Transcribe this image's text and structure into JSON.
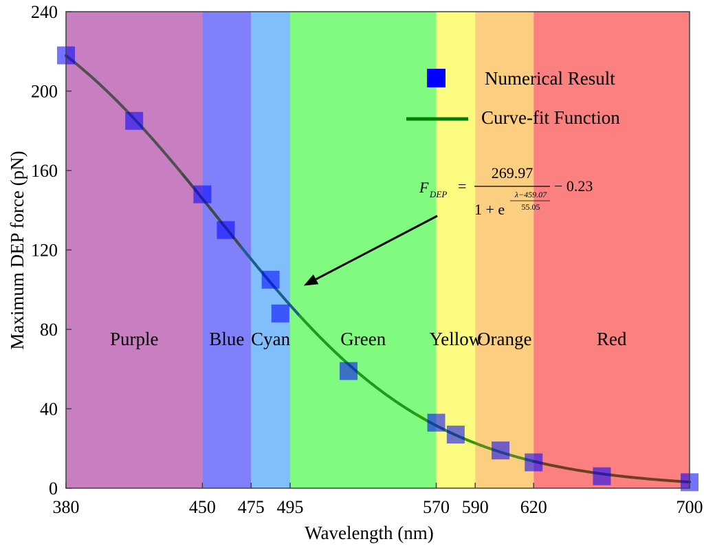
{
  "chart_data": {
    "type": "scatter",
    "xlabel": "Wavelength (nm)",
    "ylabel": "Maximum DEP force (pN)",
    "xlim": [
      380,
      700
    ],
    "ylim": [
      0,
      240
    ],
    "xticks": [
      380,
      450,
      475,
      495,
      570,
      590,
      620,
      700
    ],
    "yticks": [
      0,
      40,
      80,
      120,
      160,
      200,
      240
    ],
    "grid": false,
    "legend_position": "top-right",
    "bands": [
      {
        "label": "Purple",
        "from": 380,
        "to": 450,
        "color": "#c77fc1"
      },
      {
        "label": "Blue",
        "from": 450,
        "to": 475,
        "color": "#8080fb"
      },
      {
        "label": "Cyan",
        "from": 475,
        "to": 495,
        "color": "#80bffb"
      },
      {
        "label": "Green",
        "from": 495,
        "to": 570,
        "color": "#80fb80"
      },
      {
        "label": "Yellow",
        "from": 570,
        "to": 590,
        "color": "#fbfb80"
      },
      {
        "label": "Orange",
        "from": 590,
        "to": 620,
        "color": "#fbce80"
      },
      {
        "label": "Red",
        "from": 620,
        "to": 700,
        "color": "#fb8080"
      }
    ],
    "series": [
      {
        "name": "Numerical Result",
        "kind": "scatter",
        "color": "#0000ff",
        "x": [
          380,
          415,
          450,
          462,
          485,
          490,
          525,
          570,
          580,
          603,
          620,
          655,
          700
        ],
        "y": [
          218,
          185,
          148,
          130,
          105,
          88,
          59,
          33,
          27,
          19,
          13,
          6,
          3
        ]
      },
      {
        "name": "Curve-fit Function",
        "kind": "line",
        "color": "#008000",
        "function": "269.97/(1+exp((x-459.07)/55.05))-0.23"
      }
    ],
    "annotation": {
      "lhs": "F",
      "lhs_sub": "DEP",
      "equals": "=",
      "numerator": "269.97",
      "denominator_base": "1 + e",
      "exponent_numerator": "λ−459.07",
      "exponent_denominator": "55.05",
      "tail": "− 0.23",
      "arrow_to": [
        502,
        102
      ]
    }
  }
}
